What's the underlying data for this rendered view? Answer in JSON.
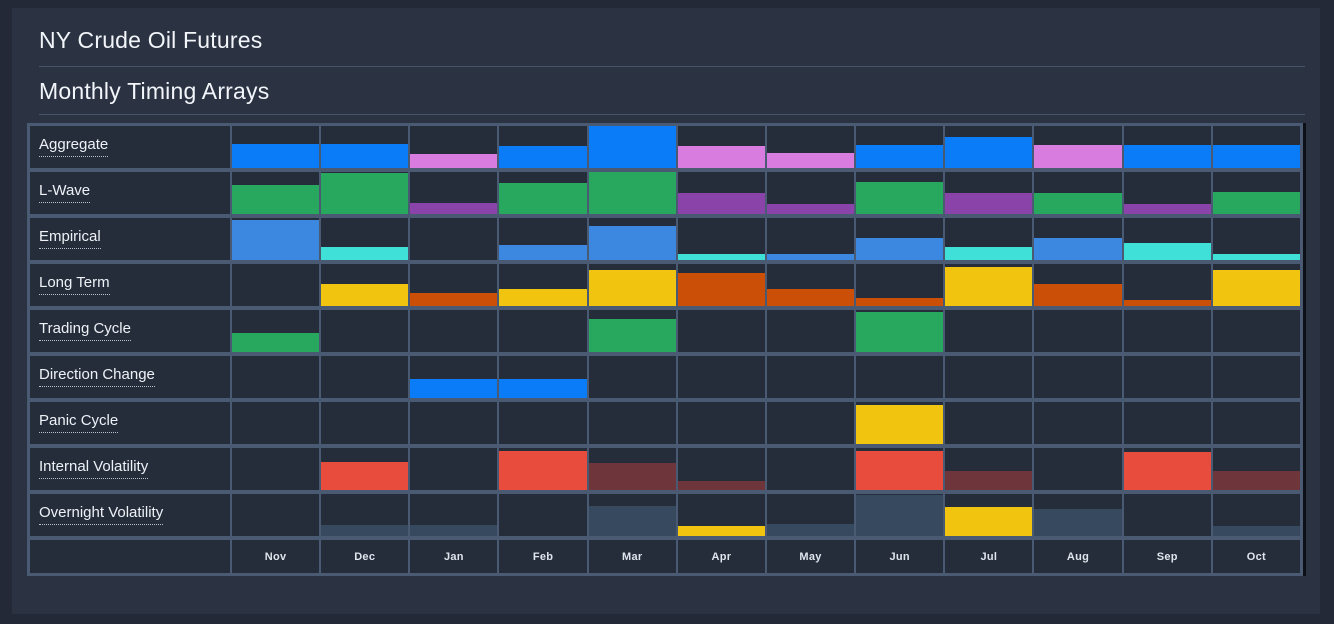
{
  "header": {
    "title": "NY Crude Oil Futures",
    "subtitle": "Monthly Timing Arrays"
  },
  "colors": {
    "blue": "#0b7cf7",
    "violet": "#d97ce0",
    "green": "#28a75f",
    "purple": "#8a43a8",
    "steel_blue": "#3c87e0",
    "cyan": "#3fe0d8",
    "yellow": "#f1c40f",
    "orange": "#cc4f07",
    "red": "#e74c3c",
    "dark_red": "#6e363a",
    "slate": "#37495f"
  },
  "chart_data": {
    "type": "heatmap",
    "title": "NY Crude Oil Futures",
    "subtitle": "Monthly Timing Arrays",
    "x_categories": [
      "Nov",
      "Dec",
      "Jan",
      "Feb",
      "Mar",
      "Apr",
      "May",
      "Jun",
      "Jul",
      "Aug",
      "Sep",
      "Oct"
    ],
    "row_labels": [
      "Aggregate",
      "L-Wave",
      "Empirical",
      "Long Term",
      "Trading Cycle",
      "Direction Change",
      "Panic Cycle",
      "Internal Volatility",
      "Overnight Volatility"
    ],
    "value_encoding": "each cell = [color_key, bar_height_fraction_of_row] bottom-aligned, null = empty cell",
    "legend_position": "none",
    "grid": true,
    "series": [
      {
        "name": "Aggregate",
        "bars": [
          [
            "blue",
            0.57
          ],
          [
            "blue",
            0.57
          ],
          [
            "violet",
            0.34
          ],
          [
            "blue",
            0.52
          ],
          [
            "blue",
            1.0
          ],
          [
            "violet",
            0.52
          ],
          [
            "violet",
            0.36
          ],
          [
            "blue",
            0.54
          ],
          [
            "blue",
            0.74
          ],
          [
            "violet",
            0.54
          ],
          [
            "blue",
            0.54
          ],
          [
            "blue",
            0.54
          ]
        ]
      },
      {
        "name": "L-Wave",
        "bars": [
          [
            "green",
            0.7
          ],
          [
            "green",
            0.97
          ],
          [
            "purple",
            0.26
          ],
          [
            "green",
            0.75
          ],
          [
            "green",
            1.0
          ],
          [
            "purple",
            0.5
          ],
          [
            "purple",
            0.24
          ],
          [
            "green",
            0.77
          ],
          [
            "purple",
            0.5
          ],
          [
            "green",
            0.5
          ],
          [
            "purple",
            0.24
          ],
          [
            "green",
            0.53
          ]
        ]
      },
      {
        "name": "Empirical",
        "bars": [
          [
            "steel_blue",
            0.95
          ],
          [
            "cyan",
            0.3
          ],
          null,
          [
            "steel_blue",
            0.35
          ],
          [
            "steel_blue",
            0.82
          ],
          [
            "cyan",
            0.14
          ],
          [
            "steel_blue",
            0.15
          ],
          [
            "steel_blue",
            0.53
          ],
          [
            "cyan",
            0.32
          ],
          [
            "steel_blue",
            0.53
          ],
          [
            "cyan",
            0.4
          ],
          [
            "cyan",
            0.15
          ]
        ]
      },
      {
        "name": "Long Term",
        "bars": [
          null,
          [
            "yellow",
            0.53
          ],
          [
            "orange",
            0.3
          ],
          [
            "yellow",
            0.4
          ],
          [
            "yellow",
            0.85
          ],
          [
            "orange",
            0.78
          ],
          [
            "orange",
            0.4
          ],
          [
            "orange",
            0.2
          ],
          [
            "yellow",
            0.92
          ],
          [
            "orange",
            0.52
          ],
          [
            "orange",
            0.14
          ],
          [
            "yellow",
            0.85
          ]
        ]
      },
      {
        "name": "Trading Cycle",
        "bars": [
          [
            "green",
            0.45
          ],
          null,
          null,
          null,
          [
            "green",
            0.78
          ],
          null,
          null,
          [
            "green",
            0.95
          ],
          null,
          null,
          null,
          null
        ]
      },
      {
        "name": "Direction Change",
        "bars": [
          null,
          null,
          [
            "blue",
            0.45
          ],
          [
            "blue",
            0.45
          ],
          null,
          null,
          null,
          null,
          null,
          null,
          null,
          null
        ]
      },
      {
        "name": "Panic Cycle",
        "bars": [
          null,
          null,
          null,
          null,
          null,
          null,
          null,
          [
            "yellow",
            0.92
          ],
          null,
          null,
          null,
          null
        ]
      },
      {
        "name": "Internal Volatility",
        "bars": [
          null,
          [
            "red",
            0.67
          ],
          null,
          [
            "red",
            0.93
          ],
          [
            "dark_red",
            0.65
          ],
          [
            "dark_red",
            0.22
          ],
          null,
          [
            "red",
            0.92
          ],
          [
            "dark_red",
            0.45
          ],
          null,
          [
            "red",
            0.9
          ],
          [
            "dark_red",
            0.45
          ]
        ]
      },
      {
        "name": "Overnight Volatility",
        "bars": [
          null,
          [
            "slate",
            0.27
          ],
          [
            "slate",
            0.27
          ],
          null,
          [
            "slate",
            0.72
          ],
          [
            "yellow",
            0.25
          ],
          [
            "slate",
            0.28
          ],
          [
            "slate",
            0.98
          ],
          [
            "yellow",
            0.68
          ],
          [
            "slate",
            0.65
          ],
          null,
          [
            "slate",
            0.25
          ]
        ]
      }
    ]
  }
}
